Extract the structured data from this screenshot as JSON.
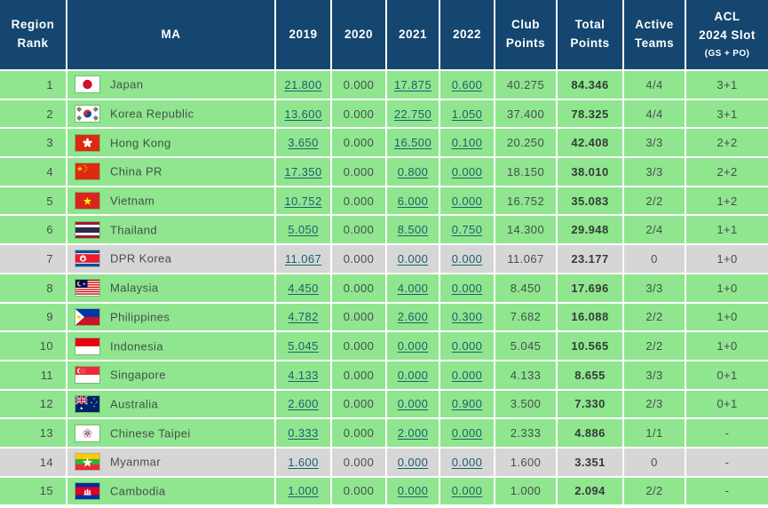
{
  "colors": {
    "header_bg": "#14466F",
    "row_green": "#8FE68F",
    "row_gray": "#D6D6D6",
    "link": "#1A616D",
    "header_text": "#FFFFFF"
  },
  "header": {
    "columns": [
      {
        "label": [
          "Region",
          "Rank"
        ],
        "sublabel": ""
      },
      {
        "label": "MA",
        "sublabel": ""
      },
      {
        "label": "2019",
        "sublabel": ""
      },
      {
        "label": "2020",
        "sublabel": ""
      },
      {
        "label": "2021",
        "sublabel": ""
      },
      {
        "label": "2022",
        "sublabel": ""
      },
      {
        "label": [
          "Club",
          "Points"
        ],
        "sublabel": ""
      },
      {
        "label": [
          "Total",
          "Points"
        ],
        "sublabel": ""
      },
      {
        "label": [
          "Active",
          "Teams"
        ],
        "sublabel": ""
      },
      {
        "label": [
          "ACL",
          "2024 Slot"
        ],
        "sublabel": "(GS + PO)"
      }
    ]
  },
  "rows": [
    {
      "rank": "1",
      "country": "Japan",
      "flag": "japan",
      "y2019": "21.800",
      "y2020": "0.000",
      "y2021": "17.875",
      "y2022": "0.600",
      "club": "40.275",
      "total": "84.346",
      "active": "4/4",
      "slot": "3+1",
      "shade": "green"
    },
    {
      "rank": "2",
      "country": "Korea Republic",
      "flag": "korea",
      "y2019": "13.600",
      "y2020": "0.000",
      "y2021": "22.750",
      "y2022": "1.050",
      "club": "37.400",
      "total": "78.325",
      "active": "4/4",
      "slot": "3+1",
      "shade": "green"
    },
    {
      "rank": "3",
      "country": "Hong Kong",
      "flag": "hongkong",
      "y2019": "3.650",
      "y2020": "0.000",
      "y2021": "16.500",
      "y2022": "0.100",
      "club": "20.250",
      "total": "42.408",
      "active": "3/3",
      "slot": "2+2",
      "shade": "green"
    },
    {
      "rank": "4",
      "country": "China PR",
      "flag": "china",
      "y2019": "17.350",
      "y2020": "0.000",
      "y2021": "0.800",
      "y2022": "0.000",
      "club": "18.150",
      "total": "38.010",
      "active": "3/3",
      "slot": "2+2",
      "shade": "green"
    },
    {
      "rank": "5",
      "country": "Vietnam",
      "flag": "vietnam",
      "y2019": "10.752",
      "y2020": "0.000",
      "y2021": "6.000",
      "y2022": "0.000",
      "club": "16.752",
      "total": "35.083",
      "active": "2/2",
      "slot": "1+2",
      "shade": "green"
    },
    {
      "rank": "6",
      "country": "Thailand",
      "flag": "thailand",
      "y2019": "5.050",
      "y2020": "0.000",
      "y2021": "8.500",
      "y2022": "0.750",
      "club": "14.300",
      "total": "29.948",
      "active": "2/4",
      "slot": "1+1",
      "shade": "green"
    },
    {
      "rank": "7",
      "country": "DPR Korea",
      "flag": "dprkorea",
      "y2019": "11.067",
      "y2020": "0.000",
      "y2021": "0.000",
      "y2022": "0.000",
      "club": "11.067",
      "total": "23.177",
      "active": "0",
      "slot": "1+0",
      "shade": "gray"
    },
    {
      "rank": "8",
      "country": "Malaysia",
      "flag": "malaysia",
      "y2019": "4.450",
      "y2020": "0.000",
      "y2021": "4.000",
      "y2022": "0.000",
      "club": "8.450",
      "total": "17.696",
      "active": "3/3",
      "slot": "1+0",
      "shade": "green"
    },
    {
      "rank": "9",
      "country": "Philippines",
      "flag": "philippines",
      "y2019": "4.782",
      "y2020": "0.000",
      "y2021": "2.600",
      "y2022": "0.300",
      "club": "7.682",
      "total": "16.088",
      "active": "2/2",
      "slot": "1+0",
      "shade": "green"
    },
    {
      "rank": "10",
      "country": "Indonesia",
      "flag": "indonesia",
      "y2019": "5.045",
      "y2020": "0.000",
      "y2021": "0.000",
      "y2022": "0.000",
      "club": "5.045",
      "total": "10.565",
      "active": "2/2",
      "slot": "1+0",
      "shade": "green"
    },
    {
      "rank": "11",
      "country": "Singapore",
      "flag": "singapore",
      "y2019": "4.133",
      "y2020": "0.000",
      "y2021": "0.000",
      "y2022": "0.000",
      "club": "4.133",
      "total": "8.655",
      "active": "3/3",
      "slot": "0+1",
      "shade": "green"
    },
    {
      "rank": "12",
      "country": "Australia",
      "flag": "australia",
      "y2019": "2.600",
      "y2020": "0.000",
      "y2021": "0.000",
      "y2022": "0.900",
      "club": "3.500",
      "total": "7.330",
      "active": "2/3",
      "slot": "0+1",
      "shade": "green"
    },
    {
      "rank": "13",
      "country": "Chinese Taipei",
      "flag": "chinesetaipei",
      "y2019": "0.333",
      "y2020": "0.000",
      "y2021": "2.000",
      "y2022": "0.000",
      "club": "2.333",
      "total": "4.886",
      "active": "1/1",
      "slot": "-",
      "shade": "green"
    },
    {
      "rank": "14",
      "country": "Myanmar",
      "flag": "myanmar",
      "y2019": "1.600",
      "y2020": "0.000",
      "y2021": "0.000",
      "y2022": "0.000",
      "club": "1.600",
      "total": "3.351",
      "active": "0",
      "slot": "-",
      "shade": "gray"
    },
    {
      "rank": "15",
      "country": "Cambodia",
      "flag": "cambodia",
      "y2019": "1.000",
      "y2020": "0.000",
      "y2021": "0.000",
      "y2022": "0.000",
      "club": "1.000",
      "total": "2.094",
      "active": "2/2",
      "slot": "-",
      "shade": "green"
    }
  ]
}
